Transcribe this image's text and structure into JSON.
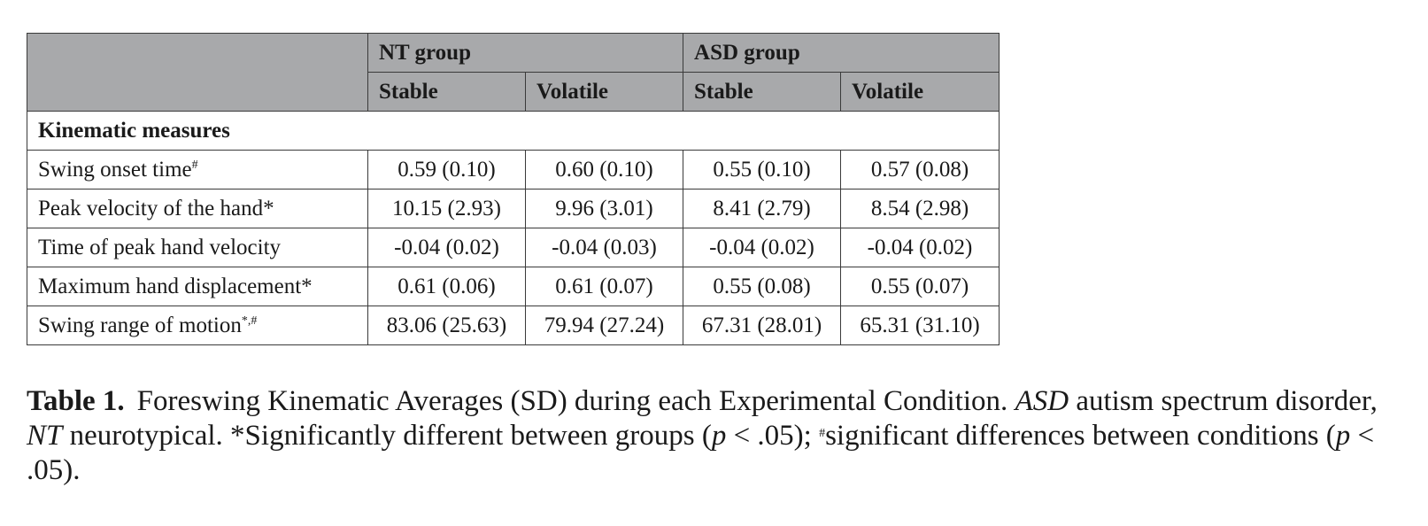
{
  "table": {
    "header": {
      "group_nt": "NT group",
      "group_asd": "ASD group",
      "subheaders": [
        "Stable",
        "Volatile",
        "Stable",
        "Volatile"
      ]
    },
    "section_label": "Kinematic measures",
    "rows": [
      {
        "label": "Swing onset time",
        "mark": "#",
        "values": [
          "0.59 (0.10)",
          "0.60 (0.10)",
          "0.55 (0.10)",
          "0.57 (0.08)"
        ]
      },
      {
        "label": "Peak velocity of the hand*",
        "mark": "",
        "values": [
          "10.15 (2.93)",
          "9.96 (3.01)",
          "8.41 (2.79)",
          "8.54 (2.98)"
        ]
      },
      {
        "label": "Time of peak hand velocity",
        "mark": "",
        "values": [
          "-0.04 (0.02)",
          "-0.04 (0.03)",
          "-0.04 (0.02)",
          "-0.04 (0.02)"
        ]
      },
      {
        "label": "Maximum hand displacement*",
        "mark": "",
        "values": [
          "0.61 (0.06)",
          "0.61 (0.07)",
          "0.55 (0.08)",
          "0.55 (0.07)"
        ]
      },
      {
        "label": "Swing range of motion",
        "mark": "*,#",
        "values": [
          "83.06 (25.63)",
          "79.94 (27.24)",
          "67.31 (28.01)",
          "65.31 (31.10)"
        ]
      }
    ]
  },
  "caption": {
    "label": "Table 1.",
    "text1": "Foreswing Kinematic Averages (SD) during each Experimental Condition. ",
    "asd_abbr": "ASD",
    "text2": " autism spectrum disorder, ",
    "nt_abbr": "NT",
    "text3": " neurotypical. *Significantly different between groups (",
    "p_symbol": "p",
    "sig_threshold_1": " < .05); ",
    "hash_mark": "#",
    "text4": "significant differences between conditions (",
    "sig_threshold_2": " < .05)."
  }
}
